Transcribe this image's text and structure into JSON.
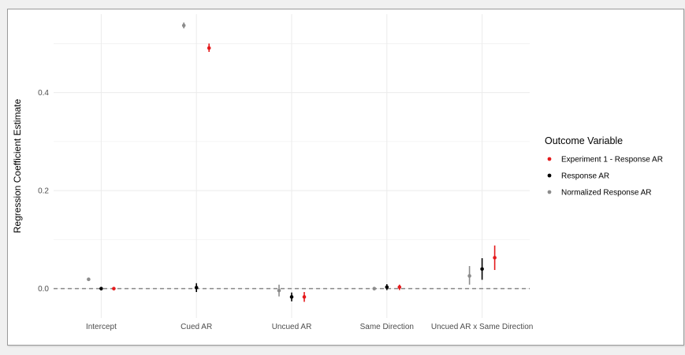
{
  "chart_data": {
    "type": "scatter",
    "title": "",
    "xlabel": "",
    "ylabel": "Regression Coefficient Estimate",
    "categories": [
      "Intercept",
      "Cued AR",
      "Uncued AR",
      "Same Direction",
      "Uncued AR x Same Direction"
    ],
    "ylim": [
      -0.06,
      0.56
    ],
    "yticks": [
      0.0,
      0.2,
      0.4
    ],
    "ytick_labels": [
      "0.0",
      "0.2",
      "0.4"
    ],
    "grid": true,
    "reference_line": {
      "y": 0,
      "style": "dashed"
    },
    "legend": {
      "title": "Outcome Variable",
      "position": "right"
    },
    "series": [
      {
        "name": "Normalized Response AR",
        "color": "#8c8c8c",
        "values": [
          0.019,
          0.537,
          -0.004,
          0.0,
          0.026
        ],
        "lower": [
          0.016,
          0.531,
          -0.016,
          -0.003,
          0.008
        ],
        "upper": [
          0.022,
          0.543,
          0.008,
          0.003,
          0.046
        ]
      },
      {
        "name": "Response AR",
        "color": "#000000",
        "values": [
          0.0,
          0.002,
          -0.017,
          0.003,
          0.04
        ],
        "lower": [
          -0.003,
          -0.007,
          -0.026,
          -0.003,
          0.018
        ],
        "upper": [
          0.003,
          0.011,
          -0.008,
          0.009,
          0.062
        ]
      },
      {
        "name": "Experiment 1 - Response AR",
        "color": "#e41a1c",
        "values": [
          0.0,
          0.491,
          -0.017,
          0.003,
          0.063
        ],
        "lower": [
          -0.003,
          0.483,
          -0.027,
          -0.003,
          0.038
        ],
        "upper": [
          0.003,
          0.5,
          -0.007,
          0.008,
          0.088
        ]
      }
    ],
    "legend_order": [
      "Experiment 1 - Response AR",
      "Response AR",
      "Normalized Response AR"
    ]
  }
}
